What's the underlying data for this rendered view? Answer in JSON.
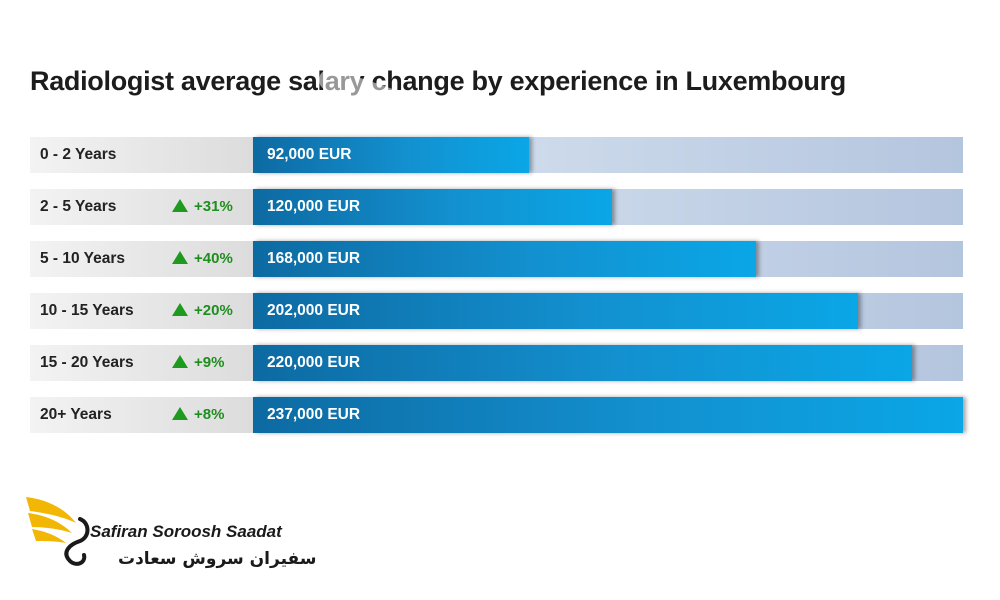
{
  "chart_data": {
    "type": "bar",
    "orientation": "horizontal",
    "title": "Radiologist average salary change by experience in Luxembourg",
    "categories": [
      "0 - 2 Years",
      "2 - 5 Years",
      "5 - 10 Years",
      "10 - 15 Years",
      "15 - 20 Years",
      "20+ Years"
    ],
    "values": [
      92000,
      120000,
      168000,
      202000,
      220000,
      237000
    ],
    "value_labels": [
      "92,000 EUR",
      "120,000 EUR",
      "168,000 EUR",
      "202,000 EUR",
      "220,000 EUR",
      "237,000 EUR"
    ],
    "changes": [
      "",
      "+31%",
      "+40%",
      "+20%",
      "+9%",
      "+8%"
    ],
    "xlim": [
      0,
      237000
    ],
    "grid": false,
    "colors": {
      "bar": "#1390cf",
      "track": "#c9d7ea",
      "change": "#1e8e1e"
    }
  },
  "logo": {
    "name_en": "Safiran Soroosh Saadat",
    "name_fa": "سفیران سروش سعادت",
    "icon": "wing-s-logo-icon",
    "colors": {
      "wing": "#f2b705",
      "s": "#1a1a1a"
    }
  }
}
